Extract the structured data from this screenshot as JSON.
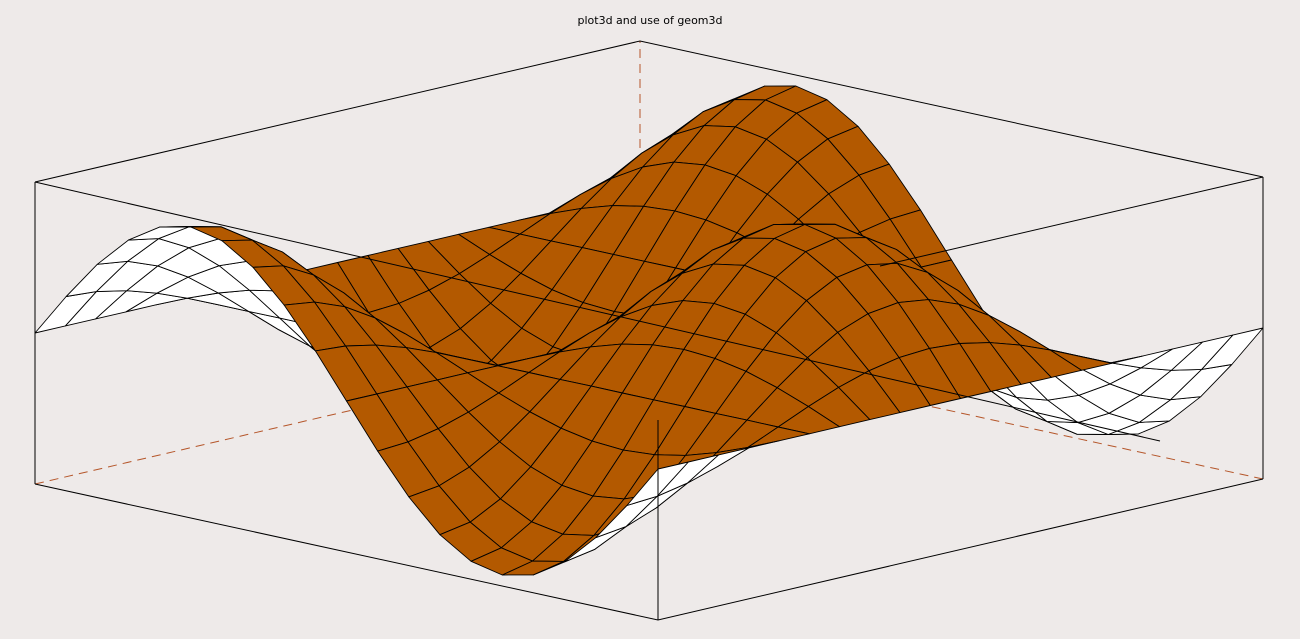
{
  "title": "plot3d and use of geom3d"
}
